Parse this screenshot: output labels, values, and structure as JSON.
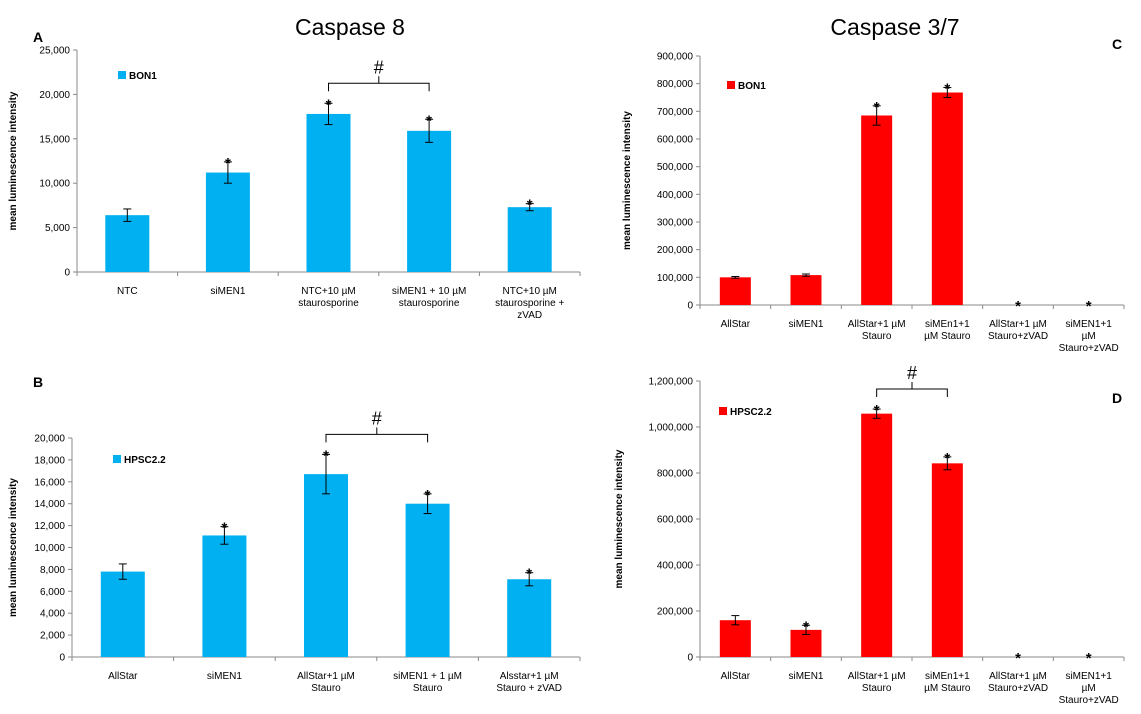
{
  "titles": {
    "left": "Caspase 8",
    "right": "Caspase 3/7"
  },
  "chart_data": [
    {
      "id": "A",
      "panel_label": "A",
      "type": "bar",
      "ylabel": "mean luminescence intensity",
      "ylim": [
        0,
        25000
      ],
      "yticks": [
        "0",
        "5,000",
        "10,000",
        "15,000",
        "20,000",
        "25,000"
      ],
      "categories": [
        [
          "NTC"
        ],
        [
          "siMEN1"
        ],
        [
          "NTC+10 µM",
          "staurosporine"
        ],
        [
          "siMEN1 + 10 µM",
          "staurosporine"
        ],
        [
          "NTC+10 µM",
          "staurosporine +",
          "zVAD"
        ]
      ],
      "series": [
        {
          "name": "BON1",
          "color": "#00B0F0",
          "values": [
            6400,
            11200,
            17800,
            15900,
            7300
          ],
          "errors": [
            700,
            1200,
            1200,
            1300,
            400
          ]
        }
      ],
      "significance": [
        "",
        "*",
        "*",
        "*",
        "*"
      ],
      "bracket": {
        "from": 2,
        "to": 3,
        "label": "#"
      },
      "legend": "top-left"
    },
    {
      "id": "C",
      "panel_label": "C",
      "type": "bar",
      "ylabel": "mean luminescence intensity",
      "ylim": [
        0,
        900000
      ],
      "yticks": [
        "0",
        "100,000",
        "200,000",
        "300,000",
        "400,000",
        "500,000",
        "600,000",
        "700,000",
        "800,000",
        "900,000"
      ],
      "categories": [
        [
          "AllStar"
        ],
        [
          "siMEN1"
        ],
        [
          "AllStar+1 µM",
          "Stauro"
        ],
        [
          "siMEn1+1",
          "µM Stauro"
        ],
        [
          "AllStar+1 µM",
          "Stauro+zVAD"
        ],
        [
          "siMEN1+1",
          "µM",
          "Stauro+zVAD"
        ]
      ],
      "series": [
        {
          "name": "BON1",
          "color": "#FF0000",
          "values": [
            100000,
            108000,
            685000,
            768000,
            0,
            0
          ],
          "errors": [
            3000,
            4000,
            35000,
            18000,
            0,
            0
          ]
        }
      ],
      "significance": [
        "",
        "",
        "*",
        "*",
        "*",
        "*"
      ],
      "legend": "top-left"
    },
    {
      "id": "B",
      "panel_label": "B",
      "type": "bar",
      "ylabel": "mean luminescence intensity",
      "ylim": [
        0,
        20000
      ],
      "yticks": [
        "0",
        "2,000",
        "4,000",
        "6,000",
        "8,000",
        "10,000",
        "12,000",
        "14,000",
        "16,000",
        "18,000",
        "20,000"
      ],
      "categories": [
        [
          "AllStar"
        ],
        [
          "siMEN1"
        ],
        [
          "AllStar+1 µM",
          "Stauro"
        ],
        [
          "siMEN1 + 1 µM",
          "Stauro"
        ],
        [
          "Alsstar+1 µM",
          "Stauro + zVAD"
        ]
      ],
      "series": [
        {
          "name": "HPSC2.2",
          "color": "#00B0F0",
          "values": [
            7800,
            11100,
            16700,
            14000,
            7100
          ],
          "errors": [
            700,
            800,
            1800,
            900,
            600
          ]
        }
      ],
      "significance": [
        "",
        "*",
        "*",
        "*",
        "*"
      ],
      "bracket": {
        "from": 2,
        "to": 3,
        "label": "#"
      },
      "legend": "top-left"
    },
    {
      "id": "D",
      "panel_label": "D",
      "type": "bar",
      "ylabel": "mean luminescence intensity",
      "ylim": [
        0,
        1200000
      ],
      "yticks": [
        "0",
        "200,000",
        "400,000",
        "600,000",
        "800,000",
        "1,000,000",
        "1,200,000"
      ],
      "categories": [
        [
          "AllStar"
        ],
        [
          "siMEN1"
        ],
        [
          "AllStar+1 µM",
          "Stauro"
        ],
        [
          "siMEn1+1",
          "µM Stauro"
        ],
        [
          "AllStar+1 µM",
          "Stauro+zVAD"
        ],
        [
          "siMEN1+1",
          "µM",
          "Stauro+zVAD"
        ]
      ],
      "series": [
        {
          "name": "HPSC2.2",
          "color": "#FF0000",
          "values": [
            160000,
            118000,
            1058000,
            842000,
            0,
            0
          ],
          "errors": [
            20000,
            20000,
            20000,
            28000,
            0,
            0
          ]
        }
      ],
      "significance": [
        "",
        "*",
        "*",
        "*",
        "*",
        "*"
      ],
      "bracket": {
        "from": 2,
        "to": 3,
        "label": "#"
      },
      "legend": "top-left"
    }
  ]
}
